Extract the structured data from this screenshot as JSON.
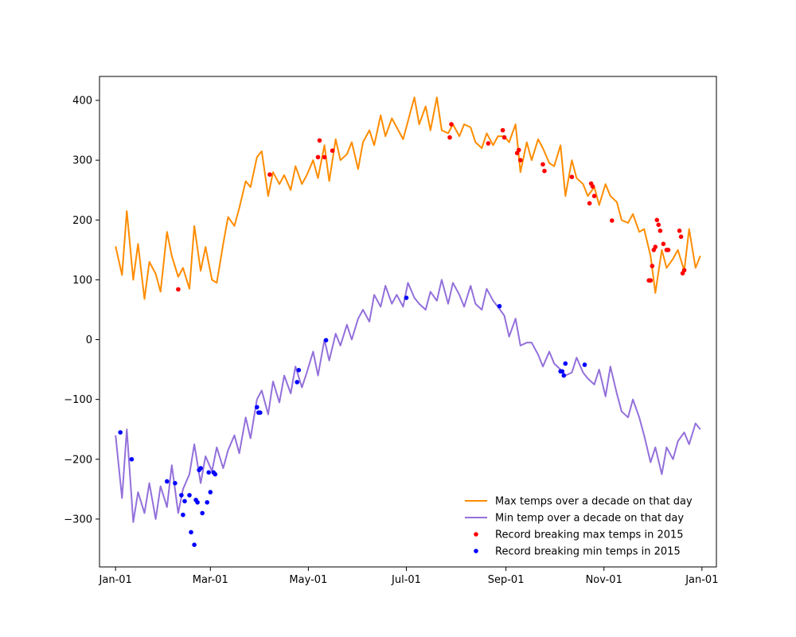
{
  "chart_data": {
    "type": "line",
    "title": "",
    "xlabel": "",
    "ylabel": "",
    "x_axis_type": "date",
    "xlim": [
      "2014-12-22",
      "2016-01-10"
    ],
    "ylim": [
      -380,
      440
    ],
    "grid": false,
    "legend_position": "lower-right",
    "x_ticks": [
      {
        "date": "2015-01-01",
        "label": "Jan-01"
      },
      {
        "date": "2015-03-01",
        "label": "Mar-01"
      },
      {
        "date": "2015-05-01",
        "label": "May-01"
      },
      {
        "date": "2015-07-01",
        "label": "Jul-01"
      },
      {
        "date": "2015-09-01",
        "label": "Sep-01"
      },
      {
        "date": "2015-11-01",
        "label": "Nov-01"
      },
      {
        "date": "2016-01-01",
        "label": "Jan-01"
      }
    ],
    "y_ticks": [
      -300,
      -200,
      -100,
      0,
      100,
      200,
      300,
      400
    ],
    "series": [
      {
        "name": "Max temps over a decade on that day",
        "type": "line",
        "color": "#ff8c00",
        "x": [
          "2015-01-01",
          "2015-01-05",
          "2015-01-08",
          "2015-01-12",
          "2015-01-15",
          "2015-01-19",
          "2015-01-22",
          "2015-01-26",
          "2015-01-29",
          "2015-02-02",
          "2015-02-05",
          "2015-02-09",
          "2015-02-12",
          "2015-02-16",
          "2015-02-19",
          "2015-02-23",
          "2015-02-26",
          "2015-03-02",
          "2015-03-05",
          "2015-03-09",
          "2015-03-12",
          "2015-03-16",
          "2015-03-19",
          "2015-03-23",
          "2015-03-26",
          "2015-03-30",
          "2015-04-02",
          "2015-04-06",
          "2015-04-09",
          "2015-04-13",
          "2015-04-16",
          "2015-04-20",
          "2015-04-23",
          "2015-04-27",
          "2015-04-30",
          "2015-05-04",
          "2015-05-07",
          "2015-05-11",
          "2015-05-14",
          "2015-05-18",
          "2015-05-21",
          "2015-05-25",
          "2015-05-28",
          "2015-06-01",
          "2015-06-04",
          "2015-06-08",
          "2015-06-11",
          "2015-06-15",
          "2015-06-18",
          "2015-06-22",
          "2015-06-25",
          "2015-06-29",
          "2015-07-02",
          "2015-07-06",
          "2015-07-09",
          "2015-07-13",
          "2015-07-16",
          "2015-07-20",
          "2015-07-23",
          "2015-07-27",
          "2015-07-30",
          "2015-08-03",
          "2015-08-06",
          "2015-08-10",
          "2015-08-13",
          "2015-08-17",
          "2015-08-20",
          "2015-08-24",
          "2015-08-27",
          "2015-08-31",
          "2015-09-03",
          "2015-09-07",
          "2015-09-10",
          "2015-09-14",
          "2015-09-17",
          "2015-09-21",
          "2015-09-24",
          "2015-09-28",
          "2015-10-01",
          "2015-10-05",
          "2015-10-08",
          "2015-10-12",
          "2015-10-15",
          "2015-10-19",
          "2015-10-22",
          "2015-10-26",
          "2015-10-29",
          "2015-11-02",
          "2015-11-05",
          "2015-11-09",
          "2015-11-12",
          "2015-11-16",
          "2015-11-19",
          "2015-11-23",
          "2015-11-26",
          "2015-11-30",
          "2015-12-03",
          "2015-12-07",
          "2015-12-10",
          "2015-12-14",
          "2015-12-17",
          "2015-12-21",
          "2015-12-24",
          "2015-12-28",
          "2015-12-31"
        ],
        "y": [
          156,
          108,
          215,
          100,
          160,
          68,
          130,
          110,
          80,
          180,
          140,
          105,
          120,
          85,
          190,
          115,
          155,
          100,
          95,
          160,
          205,
          190,
          220,
          265,
          255,
          305,
          315,
          240,
          280,
          260,
          275,
          250,
          290,
          260,
          275,
          300,
          270,
          325,
          265,
          335,
          300,
          310,
          330,
          285,
          330,
          350,
          325,
          375,
          340,
          370,
          355,
          335,
          365,
          405,
          360,
          390,
          350,
          405,
          350,
          345,
          360,
          340,
          360,
          355,
          330,
          320,
          345,
          325,
          340,
          340,
          330,
          360,
          280,
          330,
          300,
          335,
          320,
          295,
          290,
          325,
          240,
          300,
          270,
          260,
          240,
          255,
          225,
          260,
          240,
          230,
          200,
          195,
          210,
          180,
          185,
          140,
          78,
          150,
          120,
          135,
          150,
          115,
          185,
          120,
          140
        ]
      },
      {
        "name": "Min temp over a decade on that day",
        "type": "line",
        "color": "#9370db",
        "x": [
          "2015-01-01",
          "2015-01-05",
          "2015-01-08",
          "2015-01-12",
          "2015-01-15",
          "2015-01-19",
          "2015-01-22",
          "2015-01-26",
          "2015-01-29",
          "2015-02-02",
          "2015-02-05",
          "2015-02-09",
          "2015-02-12",
          "2015-02-16",
          "2015-02-19",
          "2015-02-23",
          "2015-02-26",
          "2015-03-02",
          "2015-03-05",
          "2015-03-09",
          "2015-03-12",
          "2015-03-16",
          "2015-03-19",
          "2015-03-23",
          "2015-03-26",
          "2015-03-30",
          "2015-04-02",
          "2015-04-06",
          "2015-04-09",
          "2015-04-13",
          "2015-04-16",
          "2015-04-20",
          "2015-04-23",
          "2015-04-27",
          "2015-04-30",
          "2015-05-04",
          "2015-05-07",
          "2015-05-11",
          "2015-05-14",
          "2015-05-18",
          "2015-05-21",
          "2015-05-25",
          "2015-05-28",
          "2015-06-01",
          "2015-06-04",
          "2015-06-08",
          "2015-06-11",
          "2015-06-15",
          "2015-06-18",
          "2015-06-22",
          "2015-06-25",
          "2015-06-29",
          "2015-07-02",
          "2015-07-06",
          "2015-07-09",
          "2015-07-13",
          "2015-07-16",
          "2015-07-20",
          "2015-07-23",
          "2015-07-27",
          "2015-07-30",
          "2015-08-03",
          "2015-08-06",
          "2015-08-10",
          "2015-08-13",
          "2015-08-17",
          "2015-08-20",
          "2015-08-24",
          "2015-08-27",
          "2015-08-31",
          "2015-09-03",
          "2015-09-07",
          "2015-09-10",
          "2015-09-14",
          "2015-09-17",
          "2015-09-21",
          "2015-09-24",
          "2015-09-28",
          "2015-10-01",
          "2015-10-05",
          "2015-10-08",
          "2015-10-12",
          "2015-10-15",
          "2015-10-19",
          "2015-10-22",
          "2015-10-26",
          "2015-10-29",
          "2015-11-02",
          "2015-11-05",
          "2015-11-09",
          "2015-11-12",
          "2015-11-16",
          "2015-11-19",
          "2015-11-23",
          "2015-11-26",
          "2015-11-30",
          "2015-12-03",
          "2015-12-07",
          "2015-12-10",
          "2015-12-14",
          "2015-12-17",
          "2015-12-21",
          "2015-12-24",
          "2015-12-28",
          "2015-12-31"
        ],
        "y": [
          -160,
          -265,
          -150,
          -305,
          -255,
          -290,
          -240,
          -300,
          -245,
          -280,
          -210,
          -290,
          -250,
          -225,
          -175,
          -240,
          -195,
          -220,
          -180,
          -215,
          -185,
          -160,
          -190,
          -130,
          -165,
          -100,
          -85,
          -125,
          -70,
          -105,
          -60,
          -90,
          -45,
          -80,
          -55,
          -20,
          -60,
          0,
          -35,
          10,
          -10,
          25,
          0,
          35,
          50,
          30,
          75,
          55,
          90,
          60,
          75,
          55,
          95,
          70,
          60,
          50,
          80,
          65,
          100,
          60,
          95,
          75,
          55,
          90,
          60,
          50,
          85,
          65,
          55,
          40,
          5,
          35,
          -10,
          -5,
          -5,
          -25,
          -45,
          -20,
          -40,
          -50,
          -60,
          -55,
          -30,
          -55,
          -65,
          -75,
          -50,
          -95,
          -45,
          -90,
          -120,
          -130,
          -100,
          -130,
          -160,
          -205,
          -180,
          -225,
          -180,
          -200,
          -170,
          -155,
          -175,
          -140,
          -150
        ]
      },
      {
        "name": "Record breaking max temps in 2015",
        "type": "scatter",
        "color": "#ff0000",
        "x": [
          "2015-02-09",
          "2015-04-07",
          "2015-05-07",
          "2015-05-08",
          "2015-05-11",
          "2015-05-16",
          "2015-07-28",
          "2015-07-29",
          "2015-08-21",
          "2015-08-30",
          "2015-08-31",
          "2015-09-08",
          "2015-09-09",
          "2015-09-10",
          "2015-09-24",
          "2015-09-25",
          "2015-10-12",
          "2015-10-23",
          "2015-10-24",
          "2015-10-25",
          "2015-10-26",
          "2015-11-06",
          "2015-11-29",
          "2015-11-30",
          "2015-12-01",
          "2015-12-02",
          "2015-12-03",
          "2015-12-04",
          "2015-12-05",
          "2015-12-06",
          "2015-12-08",
          "2015-12-10",
          "2015-12-11",
          "2015-12-18",
          "2015-12-19",
          "2015-12-20",
          "2015-12-21"
        ],
        "y": [
          84,
          276,
          305,
          333,
          305,
          316,
          338,
          360,
          328,
          350,
          338,
          312,
          317,
          300,
          293,
          282,
          272,
          228,
          261,
          256,
          240,
          199,
          99,
          99,
          123,
          150,
          155,
          200,
          192,
          182,
          160,
          150,
          150,
          182,
          172,
          111,
          116
        ]
      },
      {
        "name": "Record breaking min temps in 2015",
        "type": "scatter",
        "color": "#0000ff",
        "x": [
          "2015-01-04",
          "2015-01-11",
          "2015-02-02",
          "2015-02-07",
          "2015-02-11",
          "2015-02-12",
          "2015-02-13",
          "2015-02-16",
          "2015-02-17",
          "2015-02-19",
          "2015-02-20",
          "2015-02-21",
          "2015-02-22",
          "2015-02-23",
          "2015-02-24",
          "2015-02-27",
          "2015-02-28",
          "2015-03-01",
          "2015-03-03",
          "2015-03-04",
          "2015-03-30",
          "2015-03-31",
          "2015-04-01",
          "2015-04-24",
          "2015-04-25",
          "2015-05-12",
          "2015-07-01",
          "2015-08-28",
          "2015-10-05",
          "2015-10-06",
          "2015-10-07",
          "2015-10-08",
          "2015-10-20"
        ],
        "y": [
          -155,
          -200,
          -237,
          -240,
          -260,
          -293,
          -270,
          -260,
          -322,
          -343,
          -268,
          -272,
          -218,
          -215,
          -290,
          -272,
          -222,
          -255,
          -222,
          -225,
          -113,
          -122,
          -122,
          -71,
          -51,
          -1,
          70,
          56,
          -53,
          -53,
          -60,
          -40,
          -42
        ]
      }
    ]
  }
}
